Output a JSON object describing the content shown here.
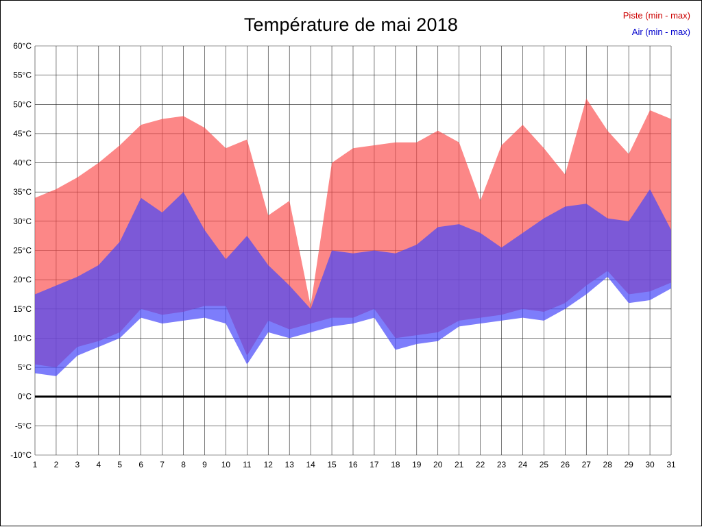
{
  "chart_data": {
    "type": "area",
    "title": "Température de mai 2018",
    "legend_position": "top-right",
    "x": [
      1,
      2,
      3,
      4,
      5,
      6,
      7,
      8,
      9,
      10,
      11,
      12,
      13,
      14,
      15,
      16,
      17,
      18,
      19,
      20,
      21,
      22,
      23,
      24,
      25,
      26,
      27,
      28,
      29,
      30,
      31
    ],
    "xlim": [
      1,
      31
    ],
    "ylim": [
      -10,
      60
    ],
    "grid": true,
    "ytick_values": [
      60,
      55,
      50,
      45,
      40,
      35,
      30,
      25,
      20,
      15,
      10,
      5,
      0,
      -5,
      -10
    ],
    "ytick_labels": [
      "60°C",
      "55°C",
      "50°C",
      "45°C",
      "40°C",
      "35°C",
      "30°C",
      "25°C",
      "20°C",
      "15°C",
      "10°C",
      "5°C",
      "0°C",
      "-5°C",
      "-10°C"
    ],
    "xtick_labels": [
      "1",
      "2",
      "3",
      "4",
      "5",
      "6",
      "7",
      "8",
      "9",
      "10",
      "11",
      "12",
      "13",
      "14",
      "15",
      "16",
      "17",
      "18",
      "19",
      "20",
      "21",
      "22",
      "23",
      "24",
      "25",
      "26",
      "27",
      "28",
      "29",
      "30",
      "31"
    ],
    "zero_line": {
      "value": 0,
      "color": "#000000",
      "width": 3
    },
    "series": [
      {
        "name": "piste",
        "legend_label": "Piste (min - max)",
        "legend_color": "#cc0000",
        "fill": "rgba(250,70,70,0.65)",
        "max": [
          34,
          35.5,
          37.5,
          40,
          43,
          46.5,
          47.5,
          48,
          46,
          42.5,
          44,
          31,
          33.5,
          15.5,
          40,
          42.5,
          43,
          43.5,
          43.5,
          45.5,
          43.5,
          33.5,
          43,
          46.5,
          42.5,
          38,
          51,
          45.5,
          41.5,
          49,
          47.5
        ],
        "min": [
          5.5,
          5,
          8.5,
          9.5,
          11,
          15,
          14,
          14.5,
          15.5,
          15.5,
          7,
          13,
          11.5,
          12.5,
          13.5,
          13.5,
          15,
          10,
          10.5,
          11,
          13,
          13.5,
          14,
          15,
          14.5,
          16,
          19,
          21.5,
          17.5,
          18,
          19.5
        ]
      },
      {
        "name": "air",
        "legend_label": "Air (min - max)",
        "legend_color": "#0000cc",
        "fill": "rgba(70,70,250,0.70)",
        "max": [
          17.5,
          19,
          20.5,
          22.5,
          26.5,
          34,
          31.5,
          35,
          28.5,
          23.5,
          27.5,
          22.5,
          19,
          15,
          25,
          24.5,
          25,
          24.5,
          26,
          29,
          29.5,
          28,
          25.5,
          28,
          30.5,
          32.5,
          33,
          30.5,
          30,
          35.5,
          28.5
        ],
        "min": [
          4,
          3.5,
          7,
          8.5,
          10,
          13.5,
          12.5,
          13,
          13.5,
          12.5,
          5.5,
          11,
          10,
          11,
          12,
          12.5,
          13.5,
          8,
          9,
          9.5,
          12,
          12.5,
          13,
          13.5,
          13,
          15,
          17.5,
          20.5,
          16,
          16.5,
          18.5
        ]
      }
    ]
  }
}
